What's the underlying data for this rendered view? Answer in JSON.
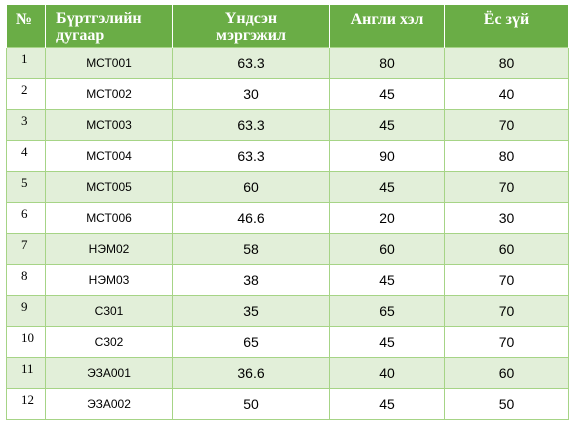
{
  "table": {
    "headers": {
      "number": "№",
      "id_line1": "Бүртгэлийн",
      "id_line2": "дугаар",
      "main_line1": "Үндсэн",
      "main_line2": "мэргэжил",
      "english": "Англи хэл",
      "ethics": "Ёс зүй"
    },
    "rows": [
      {
        "num": "1",
        "id": "МСТ001",
        "main": "63.3",
        "english": "80",
        "ethics": "80"
      },
      {
        "num": "2",
        "id": "МСТ002",
        "main": "30",
        "english": "45",
        "ethics": "40"
      },
      {
        "num": "3",
        "id": "МСТ003",
        "main": "63.3",
        "english": "45",
        "ethics": "70"
      },
      {
        "num": "4",
        "id": "МСТ004",
        "main": "63.3",
        "english": "90",
        "ethics": "80"
      },
      {
        "num": "5",
        "id": "МСТ005",
        "main": "60",
        "english": "45",
        "ethics": "70"
      },
      {
        "num": "6",
        "id": "МСТ006",
        "main": "46.6",
        "english": "20",
        "ethics": "30"
      },
      {
        "num": "7",
        "id": "НЭМ02",
        "main": "58",
        "english": "60",
        "ethics": "60"
      },
      {
        "num": "8",
        "id": "НЭМ03",
        "main": "38",
        "english": "45",
        "ethics": "70"
      },
      {
        "num": "9",
        "id": "С301",
        "main": "35",
        "english": "65",
        "ethics": "70"
      },
      {
        "num": "10",
        "id": "С302",
        "main": "65",
        "english": "45",
        "ethics": "70"
      },
      {
        "num": "11",
        "id": "ЭЗА001",
        "main": "36.6",
        "english": "40",
        "ethics": "60"
      },
      {
        "num": "12",
        "id": "ЭЗА002",
        "main": "50",
        "english": "45",
        "ethics": "50"
      }
    ]
  },
  "colors": {
    "header_bg": "#6aad46",
    "band_bg": "#e2efd9",
    "border": "#a6d486"
  }
}
